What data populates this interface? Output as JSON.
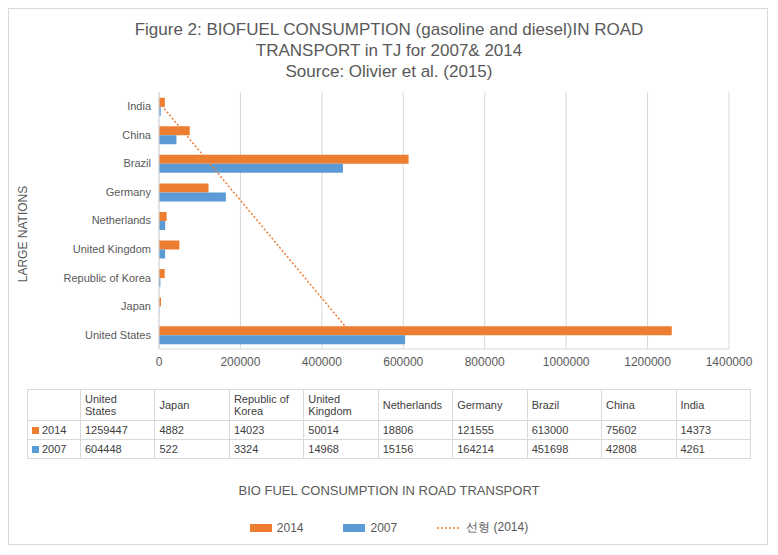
{
  "chart_data": {
    "type": "bar",
    "orientation": "horizontal",
    "title": "Figure 2: BIOFUEL CONSUMPTION (gasoline and diesel)IN ROAD TRANSPORT in TJ for  2007& 2014",
    "subtitle": "Source: Olivier et al. (2015)",
    "x_label": "BIO FUEL CONSUMPTION IN ROAD TRANSPORT",
    "y_label": "LARGE NATIONS",
    "categories": [
      "United States",
      "Japan",
      "Republic of Korea",
      "United Kingdom",
      "Netherlands",
      "Germany",
      "Brazil",
      "China",
      "India"
    ],
    "series": [
      {
        "name": "2014",
        "color": "#ed7d31",
        "values": [
          1259447,
          4882,
          14023,
          50014,
          18806,
          121555,
          613000,
          75602,
          14373
        ]
      },
      {
        "name": "2007",
        "color": "#5b9bd5",
        "values": [
          604448,
          522,
          3324,
          14968,
          15156,
          164214,
          451698,
          42808,
          4261
        ]
      },
      {
        "name": "선형 (2014)",
        "type": "line",
        "line_style": "dotted",
        "color": "#ed7d31",
        "values": [
          474543,
          416232,
          357922,
          299611,
          241300,
          182990,
          124679,
          66368,
          8058
        ]
      }
    ],
    "xlim": [
      0,
      1400000
    ],
    "xticks": [
      0,
      200000,
      400000,
      600000,
      800000,
      1000000,
      1200000,
      1400000
    ],
    "grid": true,
    "legend": "bottom"
  }
}
